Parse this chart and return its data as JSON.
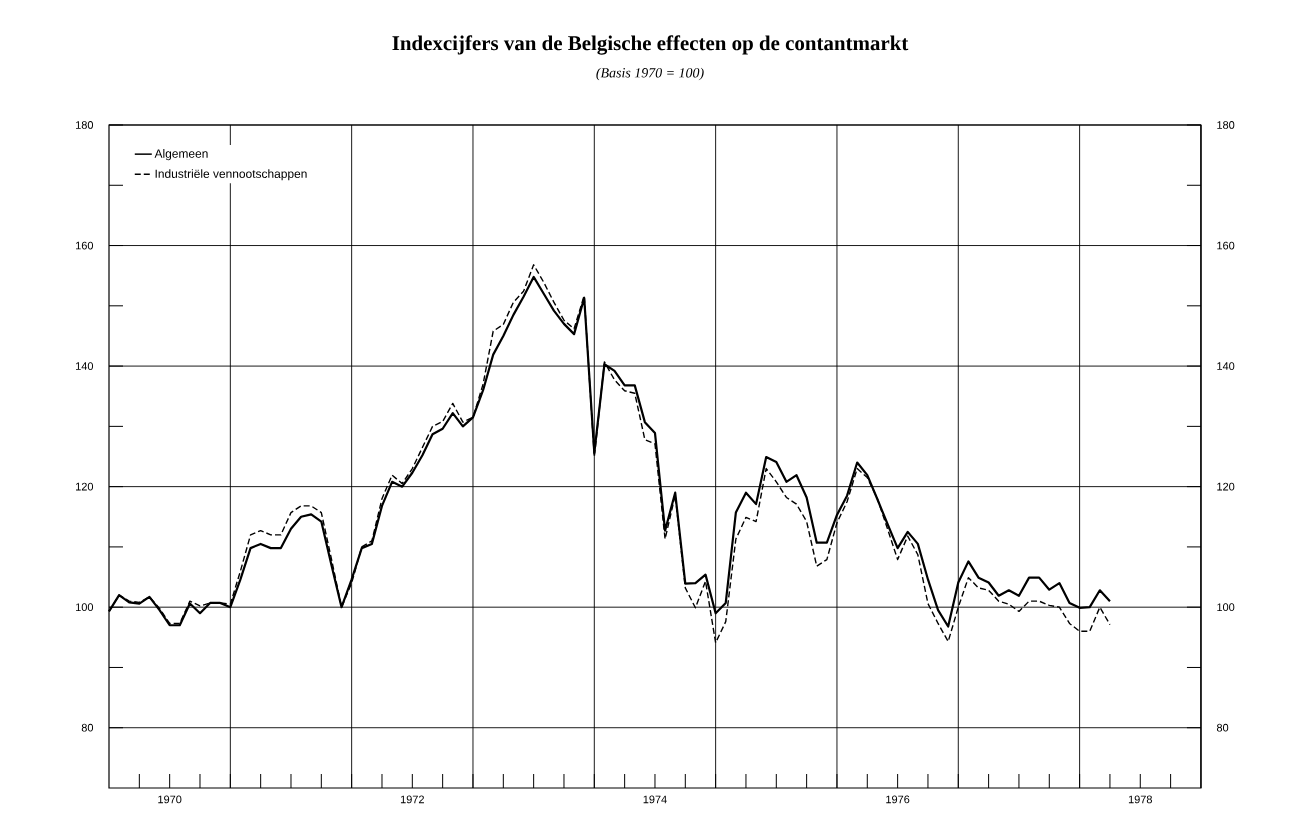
{
  "chart_data": {
    "type": "line",
    "title": "Indexcijfers van de Belgische effecten op de contantmarkt",
    "subtitle": "(Basis 1970 = 100)",
    "x": [
      "1970-01",
      "1970-02",
      "1970-03",
      "1970-04",
      "1970-05",
      "1970-06",
      "1970-07",
      "1970-08",
      "1970-09",
      "1970-10",
      "1970-11",
      "1970-12",
      "1971-01",
      "1971-02",
      "1971-03",
      "1971-04",
      "1971-05",
      "1971-06",
      "1971-07",
      "1971-08",
      "1971-09",
      "1971-10",
      "1971-11",
      "1971-12",
      "1972-01",
      "1972-02",
      "1972-03",
      "1972-04",
      "1972-05",
      "1972-06",
      "1972-07",
      "1972-08",
      "1972-09",
      "1972-10",
      "1972-11",
      "1972-12",
      "1973-01",
      "1973-02",
      "1973-03",
      "1973-04",
      "1973-05",
      "1973-06",
      "1973-07",
      "1973-08",
      "1973-09",
      "1973-10",
      "1973-11",
      "1973-12",
      "1974-01",
      "1974-02",
      "1974-03",
      "1974-04",
      "1974-05",
      "1974-06",
      "1974-07",
      "1974-08",
      "1974-09",
      "1974-10",
      "1974-11",
      "1974-12",
      "1975-01",
      "1975-02",
      "1975-03",
      "1975-04",
      "1975-05",
      "1975-06",
      "1975-07",
      "1975-08",
      "1975-09",
      "1975-10",
      "1975-11",
      "1975-12",
      "1976-01",
      "1976-02",
      "1976-03",
      "1976-04",
      "1976-05",
      "1976-06",
      "1976-07",
      "1976-08",
      "1976-09",
      "1976-10",
      "1976-11",
      "1976-12",
      "1977-01",
      "1977-02",
      "1977-03",
      "1977-04",
      "1977-05",
      "1977-06",
      "1977-07",
      "1977-08",
      "1977-09",
      "1977-10",
      "1977-11",
      "1977-12",
      "1978-01",
      "1978-02",
      "1978-03",
      "1978-04"
    ],
    "series": [
      {
        "name": "Algemeen",
        "color": "#000000",
        "line_style": "solid",
        "values": [
          99.3,
          102,
          100.8,
          100.6,
          101.7,
          99.5,
          97,
          97,
          100.6,
          99,
          100.7,
          100.7,
          100,
          104.6,
          109.8,
          110.5,
          109.8,
          109.8,
          113,
          115,
          115.4,
          114.2,
          107,
          100,
          104.6,
          109.8,
          110.5,
          116.8,
          120.8,
          120,
          122.3,
          125.2,
          128.7,
          129.6,
          132.2,
          130,
          131.5,
          136,
          141.9,
          145,
          148.5,
          151.5,
          154.8,
          152,
          149.2,
          147,
          145.3,
          151.3,
          125.6,
          140.3,
          139.2,
          136.8,
          136.8,
          130.7,
          128.9,
          112.7,
          119,
          103.9,
          104,
          105.4,
          99,
          100.7,
          115.7,
          119,
          117.1,
          124.9,
          124.1,
          120.8,
          121.9,
          118.2,
          110.7,
          110.7,
          115.3,
          118.5,
          124,
          121.9,
          117.9,
          113.8,
          109.8,
          112.5,
          110.5,
          104.6,
          99.5,
          96.8,
          104.1,
          107.6,
          104.9,
          104.1,
          101.9,
          102.8,
          101.9,
          104.9,
          104.9,
          102.9,
          104,
          100.7,
          99.9,
          100,
          102.8,
          101
        ]
      },
      {
        "name": "Industriële vennootschappen",
        "color": "#000000",
        "line_style": "dashed",
        "values": [
          99.3,
          102,
          101,
          100.8,
          101.7,
          99.8,
          97.3,
          97.3,
          101,
          100.2,
          100.7,
          100.7,
          100.5,
          106,
          112,
          112.7,
          112,
          112,
          115.7,
          116.8,
          116.8,
          115.7,
          108,
          100,
          104,
          110,
          111,
          118,
          121.9,
          120.5,
          123,
          126.5,
          130,
          130.8,
          133.8,
          130.7,
          131.5,
          137,
          145.8,
          146.9,
          150.6,
          152.4,
          156.8,
          153.9,
          150.6,
          147.6,
          146.2,
          151.7,
          124.9,
          140.7,
          137.7,
          135.9,
          135.5,
          127.8,
          127.1,
          111.3,
          118.6,
          103.2,
          99.9,
          104.3,
          94.1,
          97.6,
          111.3,
          114.9,
          114.2,
          123,
          120.8,
          118.2,
          117.1,
          114.2,
          106.8,
          107.9,
          114,
          117.5,
          123,
          121.5,
          118,
          113,
          107.9,
          111.8,
          108.7,
          100.6,
          97.3,
          94.3,
          100,
          104.9,
          103.2,
          102.8,
          101,
          100.5,
          99.3,
          101,
          101,
          100.3,
          100,
          97.3,
          96,
          96,
          100,
          97.1
        ]
      }
    ],
    "xlim": [
      "1970-01",
      "1979-01"
    ],
    "xticks": [
      {
        "value": "1970-04",
        "label": null
      },
      {
        "value": "1970-07",
        "label": "1970"
      },
      {
        "value": "1970-10",
        "label": null
      },
      {
        "value": "1971-01",
        "label": null
      },
      {
        "value": "1971-04",
        "label": null
      },
      {
        "value": "1971-07",
        "label": null
      },
      {
        "value": "1971-10",
        "label": null
      },
      {
        "value": "1972-01",
        "label": null
      },
      {
        "value": "1972-04",
        "label": null
      },
      {
        "value": "1972-07",
        "label": "1972"
      },
      {
        "value": "1972-10",
        "label": null
      },
      {
        "value": "1973-01",
        "label": null
      },
      {
        "value": "1973-04",
        "label": null
      },
      {
        "value": "1973-07",
        "label": null
      },
      {
        "value": "1973-10",
        "label": null
      },
      {
        "value": "1974-01",
        "label": null
      },
      {
        "value": "1974-04",
        "label": null
      },
      {
        "value": "1974-07",
        "label": "1974"
      },
      {
        "value": "1974-10",
        "label": null
      },
      {
        "value": "1975-01",
        "label": null
      },
      {
        "value": "1975-04",
        "label": null
      },
      {
        "value": "1975-07",
        "label": null
      },
      {
        "value": "1975-10",
        "label": null
      },
      {
        "value": "1976-01",
        "label": null
      },
      {
        "value": "1976-04",
        "label": null
      },
      {
        "value": "1976-07",
        "label": "1976"
      },
      {
        "value": "1976-10",
        "label": null
      },
      {
        "value": "1977-01",
        "label": null
      },
      {
        "value": "1977-04",
        "label": null
      },
      {
        "value": "1977-07",
        "label": null
      },
      {
        "value": "1977-10",
        "label": null
      },
      {
        "value": "1978-01",
        "label": null
      },
      {
        "value": "1978-04",
        "label": null
      },
      {
        "value": "1978-07",
        "label": "1978"
      },
      {
        "value": "1978-10",
        "label": null
      }
    ],
    "ylim": [
      70,
      180
    ],
    "yticks": [
      80,
      {
        "value": 90,
        "label": null
      },
      100,
      {
        "value": 110,
        "label": null
      },
      120,
      {
        "value": 130,
        "label": null
      },
      140,
      {
        "value": 150,
        "label": null
      },
      160,
      {
        "value": 170,
        "label": null
      },
      180
    ],
    "y2lim": [
      70,
      180
    ],
    "y2ticks": [
      80,
      {
        "value": 90,
        "label": null
      },
      100,
      {
        "value": 110,
        "label": null
      },
      120,
      {
        "value": 130,
        "label": null
      },
      140,
      {
        "value": 150,
        "label": null
      },
      160,
      {
        "value": 170,
        "label": null
      },
      180
    ],
    "grid": true,
    "legend": "top left"
  }
}
